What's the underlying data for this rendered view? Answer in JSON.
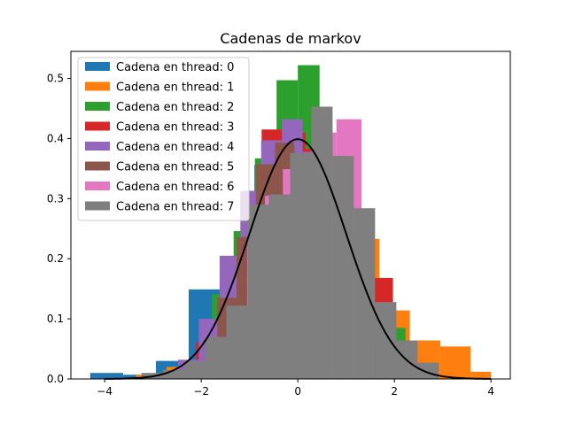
{
  "chart_data": {
    "type": "histogram",
    "title": "Cadenas de markov",
    "xlabel": "",
    "ylabel": "",
    "xlim": [
      -4.7,
      4.4
    ],
    "ylim": [
      0,
      0.545
    ],
    "xticks": [
      -4,
      -2,
      0,
      2,
      4
    ],
    "xtick_labels": [
      "−4",
      "−2",
      "0",
      "2",
      "4"
    ],
    "yticks": [
      0,
      0.1,
      0.2,
      0.3,
      0.4,
      0.5
    ],
    "ytick_labels": [
      "0.0",
      "0.1",
      "0.2",
      "0.3",
      "0.4",
      "0.5"
    ],
    "grid": false,
    "legend_position": "upper-left",
    "series": [
      {
        "name": "Cadena en thread: 0",
        "color": "#1f77b4",
        "bins": [
          [
            -4.3,
            -3.62,
            0.01
          ],
          [
            -3.62,
            -2.94,
            0.007
          ],
          [
            -2.94,
            -2.26,
            0.03
          ],
          [
            -2.26,
            -1.58,
            0.149
          ],
          [
            -1.58,
            -0.9,
            0.203
          ],
          [
            -0.9,
            -0.22,
            0.356
          ],
          [
            -0.22,
            0.46,
            0.371
          ],
          [
            0.46,
            1.14,
            0.311
          ],
          [
            1.14,
            1.82,
            0.142
          ],
          [
            1.82,
            2.5,
            0.061
          ]
        ]
      },
      {
        "name": "Cadena en thread: 1",
        "color": "#ff7f0e",
        "bins": [
          [
            -3.35,
            -2.72,
            0.007
          ],
          [
            -2.72,
            -2.09,
            0.02
          ],
          [
            -2.09,
            -1.46,
            0.057
          ],
          [
            -1.46,
            -0.83,
            0.169
          ],
          [
            -0.83,
            -0.2,
            0.291
          ],
          [
            -0.2,
            0.43,
            0.385
          ],
          [
            0.43,
            1.06,
            0.358
          ],
          [
            1.06,
            1.69,
            0.233
          ],
          [
            1.69,
            2.32,
            0.114
          ],
          [
            2.32,
            2.95,
            0.064
          ],
          [
            2.95,
            3.58,
            0.054
          ],
          [
            3.58,
            4.0,
            0.012
          ]
        ]
      },
      {
        "name": "Cadena en thread: 2",
        "color": "#2ca02c",
        "bins": [
          [
            -1.78,
            -1.33,
            0.141
          ],
          [
            -1.33,
            -0.89,
            0.246
          ],
          [
            -0.89,
            -0.44,
            0.367
          ],
          [
            -0.44,
            0.0,
            0.497
          ],
          [
            0.0,
            0.45,
            0.522
          ],
          [
            0.45,
            0.89,
            0.358
          ],
          [
            0.89,
            1.34,
            0.219
          ],
          [
            1.34,
            1.78,
            0.131
          ],
          [
            1.78,
            2.23,
            0.085
          ]
        ]
      },
      {
        "name": "Cadena en thread: 3",
        "color": "#d62728",
        "bins": [
          [
            -2.11,
            -1.66,
            0.061
          ],
          [
            -1.66,
            -1.2,
            0.122
          ],
          [
            -1.2,
            -0.75,
            0.229
          ],
          [
            -0.75,
            -0.3,
            0.415
          ],
          [
            -0.3,
            0.16,
            0.41
          ],
          [
            0.16,
            0.61,
            0.383
          ],
          [
            0.61,
            1.07,
            0.372
          ],
          [
            1.07,
            1.52,
            0.259
          ],
          [
            1.52,
            1.97,
            0.168
          ],
          [
            1.97,
            2.43,
            0.064
          ],
          [
            2.43,
            2.88,
            0.017
          ]
        ]
      },
      {
        "name": "Cadena en thread: 4",
        "color": "#9467bd",
        "bins": [
          [
            -2.48,
            -2.05,
            0.032
          ],
          [
            -2.05,
            -1.62,
            0.1
          ],
          [
            -1.62,
            -1.19,
            0.205
          ],
          [
            -1.19,
            -0.76,
            0.313
          ],
          [
            -0.76,
            -0.33,
            0.397
          ],
          [
            -0.33,
            0.1,
            0.432
          ],
          [
            0.1,
            0.53,
            0.378
          ],
          [
            0.53,
            0.96,
            0.327
          ],
          [
            0.96,
            1.39,
            0.226
          ],
          [
            1.39,
            1.82,
            0.117
          ],
          [
            1.82,
            2.25,
            0.061
          ],
          [
            2.25,
            2.68,
            0.027
          ]
        ]
      },
      {
        "name": "Cadena en thread: 5",
        "color": "#8c564b",
        "bins": [
          [
            -1.67,
            -1.27,
            0.135
          ],
          [
            -1.27,
            -0.87,
            0.236
          ],
          [
            -0.87,
            -0.47,
            0.357
          ],
          [
            -0.47,
            -0.07,
            0.393
          ],
          [
            -0.07,
            0.33,
            0.336
          ],
          [
            0.33,
            0.73,
            0.347
          ],
          [
            0.73,
            1.13,
            0.243
          ],
          [
            1.13,
            1.53,
            0.118
          ],
          [
            1.53,
            1.93,
            0.061
          ]
        ]
      },
      {
        "name": "Cadena en thread: 6",
        "color": "#e377c2",
        "bins": [
          [
            -1.05,
            -0.68,
            0.22
          ],
          [
            -0.68,
            -0.31,
            0.305
          ],
          [
            -0.31,
            0.06,
            0.349
          ],
          [
            0.06,
            0.43,
            0.375
          ],
          [
            0.43,
            0.8,
            0.41
          ],
          [
            0.8,
            1.32,
            0.432
          ],
          [
            1.32,
            1.32,
            0.0
          ],
          [
            1.32,
            1.32,
            0.0
          ],
          [
            1.32,
            1.32,
            0.0
          ],
          [
            1.32,
            1.32,
            0.0
          ]
        ]
      },
      {
        "name": "Cadena en thread: 7",
        "color": "#7f7f7f",
        "bins": [
          [
            -3.24,
            -2.8,
            0.01
          ],
          [
            -2.8,
            -2.36,
            0.015
          ],
          [
            -2.36,
            -1.92,
            0.03
          ],
          [
            -1.92,
            -1.48,
            0.07
          ],
          [
            -1.48,
            -1.04,
            0.122
          ],
          [
            -1.04,
            -0.6,
            0.29
          ],
          [
            -0.6,
            -0.16,
            0.307
          ],
          [
            -0.16,
            0.28,
            0.376
          ],
          [
            0.28,
            0.72,
            0.453
          ],
          [
            0.72,
            1.16,
            0.371
          ],
          [
            1.16,
            1.6,
            0.284
          ],
          [
            1.6,
            2.04,
            0.128
          ],
          [
            2.04,
            2.48,
            0.064
          ],
          [
            2.48,
            2.92,
            0.027
          ]
        ]
      }
    ],
    "overlay_curve": {
      "name": "",
      "color": "#000000",
      "function": "normal_pdf",
      "mean": 0,
      "std": 1,
      "x_range": [
        -4.0,
        4.0
      ]
    }
  }
}
